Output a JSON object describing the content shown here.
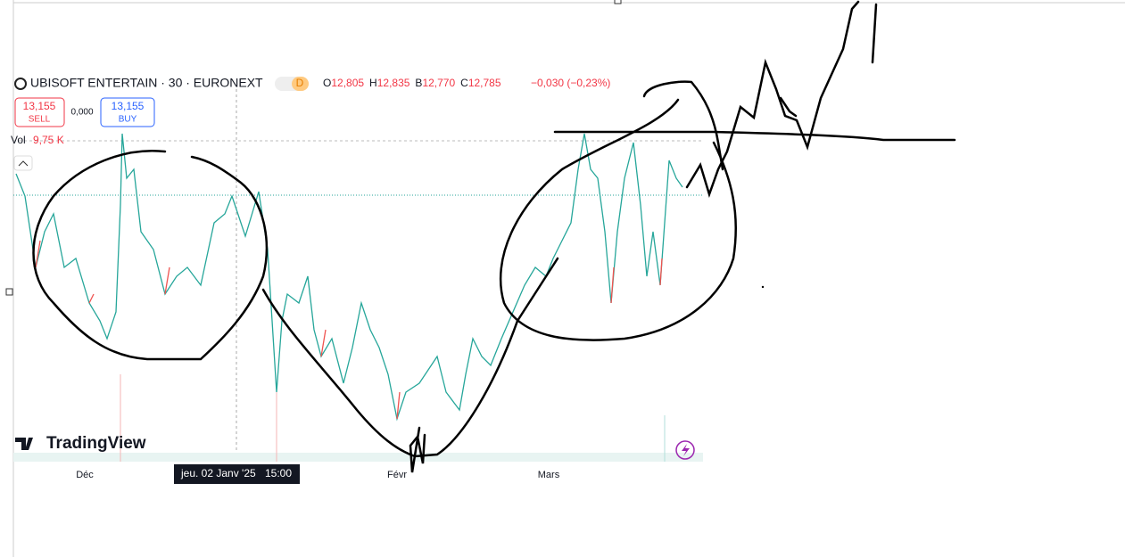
{
  "toolbar": {
    "symbol": "UBISOFT ENTERTAIN · 30 · EURONEXT",
    "badge": "D",
    "ohlc": [
      {
        "label": "O",
        "value": "12,805"
      },
      {
        "label": "H",
        "value": "12,835"
      },
      {
        "label": "B",
        "value": "12,770"
      },
      {
        "label": "C",
        "value": "12,785"
      }
    ],
    "change": "−0,030 (−0,23%)"
  },
  "trade": {
    "sell_price": "13,155",
    "sell_label": "SELL",
    "spread": "0,000",
    "buy_price": "13,155",
    "buy_label": "BUY"
  },
  "volume": {
    "label": "Vol",
    "value": "9,75 K"
  },
  "x_axis": {
    "labels": [
      "Déc",
      "Févr",
      "Mars"
    ]
  },
  "crosshair": {
    "date": "jeu. 02 Janv '25",
    "time": "15:00"
  },
  "logo": "TradingView"
}
